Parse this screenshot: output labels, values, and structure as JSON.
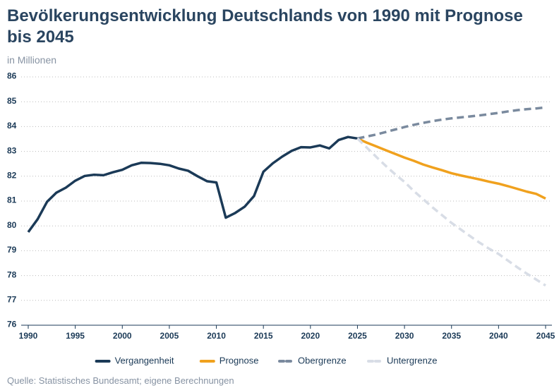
{
  "chart_data": {
    "type": "line",
    "title": "Bevölkerungsentwicklung Deutschlands von 1990 mit Prognose bis 2045",
    "subtitle": "in Millionen",
    "source": "Quelle: Statistisches Bundesamt; eigene Berechnungen",
    "x": [
      1990,
      1991,
      1992,
      1993,
      1994,
      1995,
      1996,
      1997,
      1998,
      1999,
      2000,
      2001,
      2002,
      2003,
      2004,
      2005,
      2006,
      2007,
      2008,
      2009,
      2010,
      2011,
      2012,
      2013,
      2014,
      2015,
      2016,
      2017,
      2018,
      2019,
      2020,
      2021,
      2022,
      2023,
      2024,
      2025,
      2026,
      2027,
      2028,
      2029,
      2030,
      2031,
      2032,
      2033,
      2034,
      2035,
      2036,
      2037,
      2038,
      2039,
      2040,
      2041,
      2042,
      2043,
      2044,
      2045
    ],
    "series": [
      {
        "name": "Vergangenheit",
        "color": "#1b3a57",
        "dashed": false,
        "values": [
          79.75,
          80.27,
          80.97,
          81.34,
          81.54,
          81.82,
          82.01,
          82.06,
          82.04,
          82.16,
          82.26,
          82.44,
          82.54,
          82.53,
          82.5,
          82.44,
          82.31,
          82.22,
          82.0,
          81.8,
          81.75,
          80.33,
          80.52,
          80.77,
          81.2,
          82.18,
          82.52,
          82.79,
          83.02,
          83.17,
          83.16,
          83.24,
          83.12,
          83.46,
          83.58,
          83.52,
          null,
          null,
          null,
          null,
          null,
          null,
          null,
          null,
          null,
          null,
          null,
          null,
          null,
          null,
          null,
          null,
          null,
          null,
          null,
          null
        ]
      },
      {
        "name": "Prognose",
        "color": "#f0a11e",
        "dashed": false,
        "values": [
          null,
          null,
          null,
          null,
          null,
          null,
          null,
          null,
          null,
          null,
          null,
          null,
          null,
          null,
          null,
          null,
          null,
          null,
          null,
          null,
          null,
          null,
          null,
          null,
          null,
          null,
          null,
          null,
          null,
          null,
          null,
          null,
          null,
          null,
          null,
          83.52,
          83.35,
          83.2,
          83.05,
          82.9,
          82.75,
          82.62,
          82.47,
          82.35,
          82.24,
          82.12,
          82.03,
          81.95,
          81.87,
          81.78,
          81.7,
          81.6,
          81.49,
          81.38,
          81.29,
          81.1
        ]
      },
      {
        "name": "Obergrenze",
        "color": "#7a8a9e",
        "dashed": true,
        "values": [
          null,
          null,
          null,
          null,
          null,
          null,
          null,
          null,
          null,
          null,
          null,
          null,
          null,
          null,
          null,
          null,
          null,
          null,
          null,
          null,
          null,
          null,
          null,
          null,
          null,
          null,
          null,
          null,
          null,
          null,
          null,
          null,
          null,
          null,
          null,
          83.52,
          83.6,
          83.68,
          83.78,
          83.88,
          83.98,
          84.07,
          84.15,
          84.22,
          84.28,
          84.33,
          84.37,
          84.41,
          84.45,
          84.5,
          84.55,
          84.61,
          84.66,
          84.7,
          84.73,
          84.77
        ]
      },
      {
        "name": "Untergrenze",
        "color": "#d8dde6",
        "dashed": true,
        "values": [
          null,
          null,
          null,
          null,
          null,
          null,
          null,
          null,
          null,
          null,
          null,
          null,
          null,
          null,
          null,
          null,
          null,
          null,
          null,
          null,
          null,
          null,
          null,
          null,
          null,
          null,
          null,
          null,
          null,
          null,
          null,
          null,
          null,
          null,
          null,
          83.52,
          83.15,
          82.78,
          82.42,
          82.08,
          81.77,
          81.4,
          81.07,
          80.74,
          80.43,
          80.12,
          79.85,
          79.58,
          79.32,
          79.08,
          78.87,
          78.6,
          78.33,
          78.08,
          77.84,
          77.6
        ]
      }
    ],
    "xlim": [
      1990,
      2045
    ],
    "xticks": [
      1990,
      1995,
      2000,
      2005,
      2010,
      2015,
      2020,
      2025,
      2030,
      2035,
      2040,
      2045
    ],
    "ylim": [
      76,
      86
    ],
    "yticks": [
      76,
      77,
      78,
      79,
      80,
      81,
      82,
      83,
      84,
      85,
      86
    ],
    "grid": true
  }
}
